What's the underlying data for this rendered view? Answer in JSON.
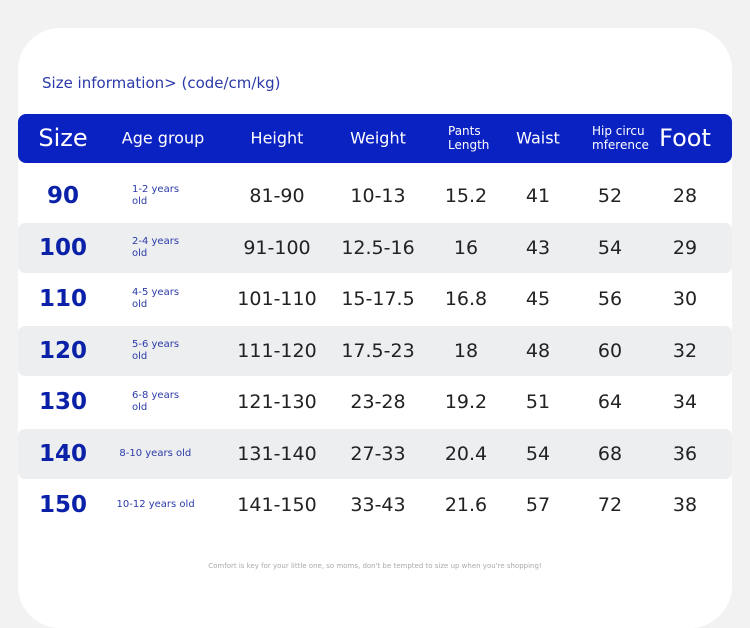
{
  "title": "Size information> (code/cm/kg)",
  "table": {
    "header": [
      "Size",
      "Age group",
      "Height",
      "Weight",
      "Pants Length",
      "Waist",
      "Hip circu mference",
      "Foot"
    ],
    "rows": [
      [
        "90",
        "1-2 years old",
        "81-90",
        "10-13",
        "15.2",
        "41",
        "52",
        "28"
      ],
      [
        "100",
        "2-4 years old",
        "91-100",
        "12.5-16",
        "16",
        "43",
        "54",
        "29"
      ],
      [
        "110",
        "4-5 years old",
        "101-110",
        "15-17.5",
        "16.8",
        "45",
        "56",
        "30"
      ],
      [
        "120",
        "5-6 years old",
        "111-120",
        "17.5-23",
        "18",
        "48",
        "60",
        "32"
      ],
      [
        "130",
        "6-8 years old",
        "121-130",
        "23-28",
        "19.2",
        "51",
        "64",
        "34"
      ],
      [
        "140",
        "8-10 years old",
        "131-140",
        "27-33",
        "20.4",
        "54",
        "68",
        "36"
      ],
      [
        "150",
        "10-12 years old",
        "141-150",
        "33-43",
        "21.6",
        "57",
        "72",
        "38"
      ]
    ]
  },
  "note": "Comfort is key for your little one, so moms, don't be tempted to size up when you're shopping!"
}
